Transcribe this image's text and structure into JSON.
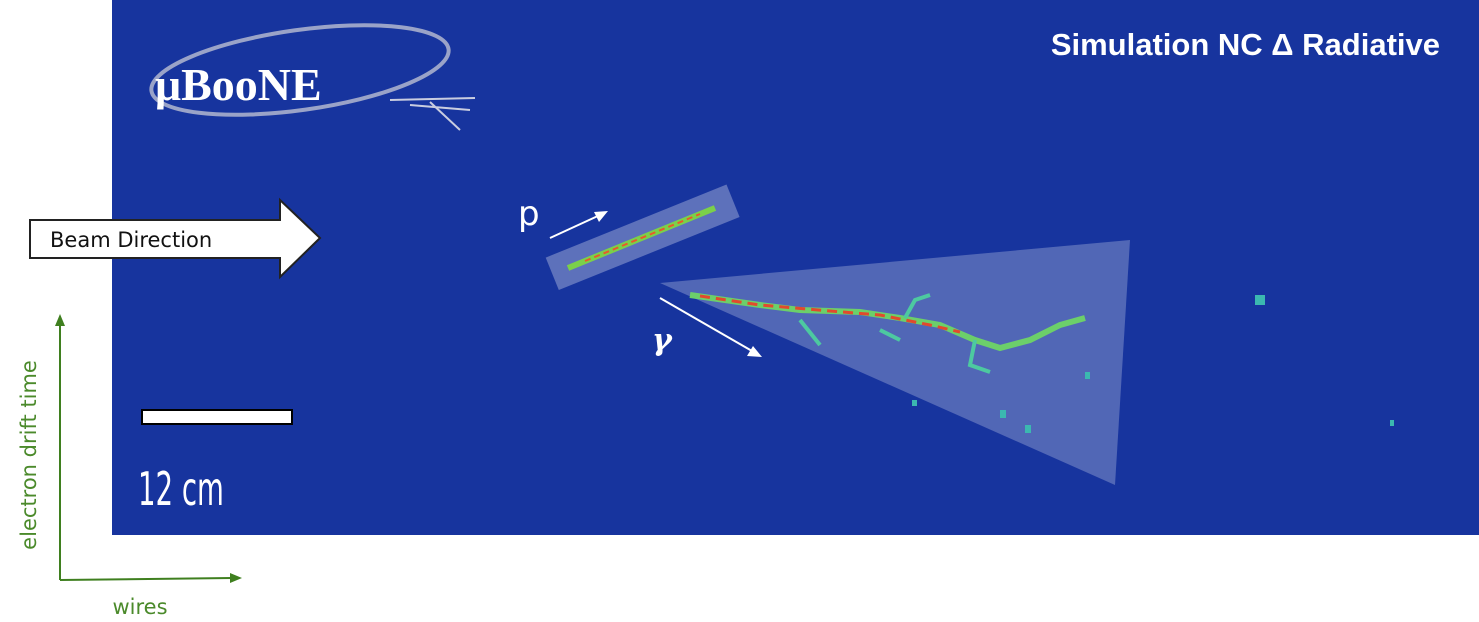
{
  "header": {
    "title": "Simulation NC Δ Radiative",
    "logo": "μBooNE"
  },
  "labels": {
    "beam": "Beam Direction",
    "proton": "p",
    "photon": "γ",
    "scale": "12 cm"
  },
  "axes": {
    "vertical": "electron drift time",
    "horizontal": "wires"
  }
}
